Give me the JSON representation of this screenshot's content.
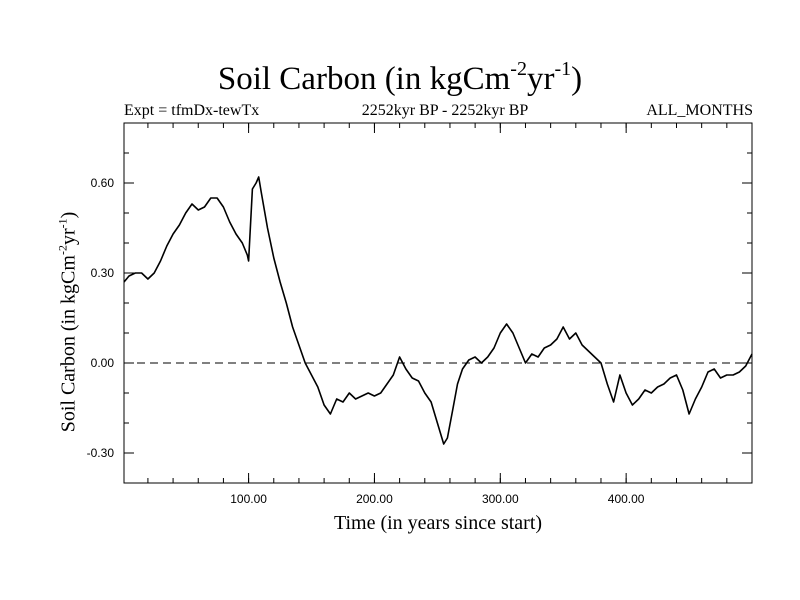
{
  "chart_data": {
    "type": "line",
    "title": "Soil Carbon (in kgCm",
    "title_units": {
      "base": "Soil Carbon (in kgCm",
      "sup1": "-2",
      "mid": "yr",
      "sup2": "-1",
      "end": ")"
    },
    "subtitle_left": "Expt = tfmDx-tewTx",
    "subtitle_center": "2252kyr BP - 2252kyr BP",
    "subtitle_right": "ALL_MONTHS",
    "xlabel": "Time (in years since start)",
    "ylabel_units": {
      "base": "Soil Carbon (in kgCm",
      "sup1": "-2",
      "mid": "yr",
      "sup2": "-1",
      "end": ")"
    },
    "xlim": [
      1,
      500
    ],
    "ylim": [
      -0.4,
      0.8
    ],
    "xticks": [
      100,
      200,
      300,
      400
    ],
    "xtick_labels": [
      "100.00",
      "200.00",
      "300.00",
      "400.00"
    ],
    "yticks": [
      -0.3,
      0.0,
      0.3,
      0.6
    ],
    "ytick_labels": [
      "-0.30",
      "0.00",
      "0.30",
      "0.60"
    ],
    "reference_line": {
      "y": 0.0,
      "style": "dashed"
    },
    "series": [
      {
        "name": "Soil Carbon",
        "x": [
          1,
          5,
          10,
          15,
          20,
          25,
          30,
          35,
          40,
          45,
          50,
          55,
          60,
          65,
          70,
          75,
          80,
          85,
          90,
          95,
          99,
          100,
          103,
          106,
          108,
          110,
          115,
          120,
          125,
          130,
          135,
          140,
          145,
          150,
          155,
          160,
          165,
          170,
          175,
          180,
          185,
          190,
          195,
          200,
          205,
          210,
          215,
          220,
          225,
          230,
          235,
          240,
          245,
          250,
          255,
          258,
          262,
          266,
          270,
          275,
          280,
          285,
          290,
          295,
          300,
          305,
          310,
          315,
          320,
          325,
          330,
          335,
          340,
          345,
          350,
          355,
          360,
          365,
          370,
          375,
          380,
          385,
          390,
          395,
          400,
          405,
          410,
          415,
          420,
          425,
          430,
          435,
          440,
          445,
          450,
          455,
          460,
          465,
          470,
          475,
          480,
          485,
          490,
          495,
          500
        ],
        "y": [
          0.27,
          0.29,
          0.3,
          0.3,
          0.28,
          0.3,
          0.34,
          0.39,
          0.43,
          0.46,
          0.5,
          0.53,
          0.51,
          0.52,
          0.55,
          0.55,
          0.52,
          0.47,
          0.43,
          0.4,
          0.36,
          0.34,
          0.58,
          0.6,
          0.62,
          0.57,
          0.45,
          0.35,
          0.27,
          0.2,
          0.12,
          0.06,
          0.0,
          -0.04,
          -0.08,
          -0.14,
          -0.17,
          -0.12,
          -0.13,
          -0.1,
          -0.12,
          -0.11,
          -0.1,
          -0.11,
          -0.1,
          -0.07,
          -0.04,
          0.02,
          -0.02,
          -0.05,
          -0.06,
          -0.1,
          -0.13,
          -0.2,
          -0.27,
          -0.25,
          -0.16,
          -0.07,
          -0.02,
          0.01,
          0.02,
          0.0,
          0.02,
          0.05,
          0.1,
          0.13,
          0.1,
          0.05,
          0.0,
          0.03,
          0.02,
          0.05,
          0.06,
          0.08,
          0.12,
          0.08,
          0.1,
          0.06,
          0.04,
          0.02,
          0.0,
          -0.07,
          -0.13,
          -0.04,
          -0.1,
          -0.14,
          -0.12,
          -0.09,
          -0.1,
          -0.08,
          -0.07,
          -0.05,
          -0.04,
          -0.09,
          -0.17,
          -0.12,
          -0.08,
          -0.03,
          -0.02,
          -0.05,
          -0.04,
          -0.04,
          -0.03,
          -0.01,
          0.03
        ]
      }
    ],
    "line_color": "#000000"
  }
}
